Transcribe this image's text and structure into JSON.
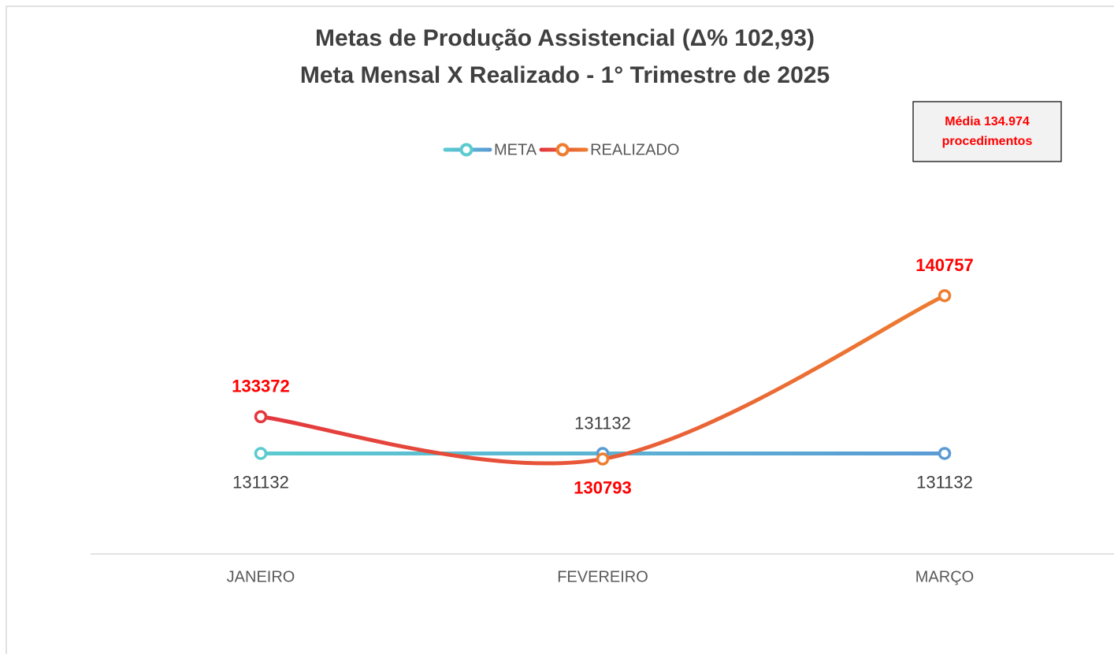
{
  "chart_data": {
    "type": "line",
    "title": [
      "Metas de Produção Assistencial (Δ% 102,93)",
      "Meta Mensal X Realizado - 1° Trimestre de 2025"
    ],
    "annotation": [
      "Média 134.974",
      "procedimentos"
    ],
    "categories": [
      "JANEIRO",
      "FEVEREIRO",
      "MARÇO"
    ],
    "series": [
      {
        "name": "META",
        "color": [
          "#5bcbd0",
          "#5b9bd5"
        ],
        "label_color": "#404040",
        "label_bold": false,
        "smooth": false,
        "values": [
          131132,
          131132,
          131132
        ]
      },
      {
        "name": "REALIZADO",
        "color": [
          "#e3383e",
          "#ed7d31"
        ],
        "label_color": "#ff0000",
        "label_bold": true,
        "smooth": true,
        "values": [
          133372,
          130793,
          140757
        ]
      }
    ],
    "ylim": [
      125000,
      145000
    ],
    "grid": false,
    "legend": "top"
  }
}
